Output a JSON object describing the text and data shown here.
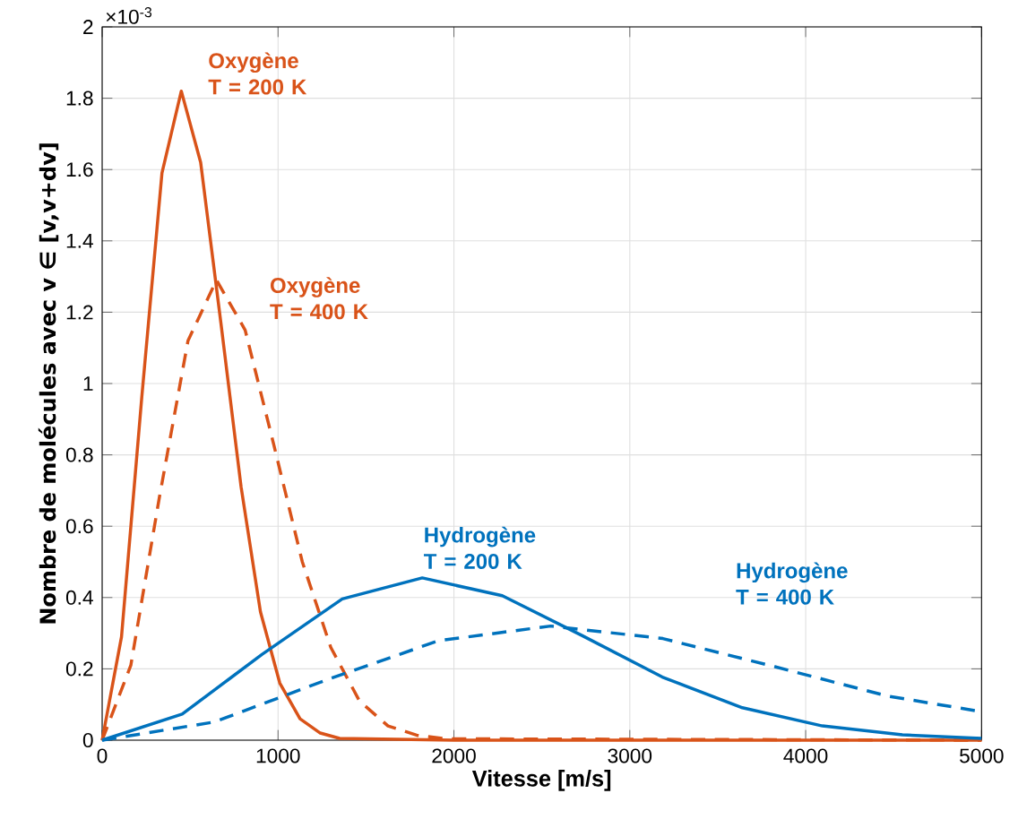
{
  "chart_data": {
    "type": "line",
    "xlabel": "Vitesse [m/s]",
    "ylabel": "Nombre de molécules avec v ∈ [v,v+dv]",
    "annotations": [
      "×10$^{-3}$"
    ],
    "xlim": [
      0,
      5000
    ],
    "xticks": [
      0,
      1000,
      2000,
      3000,
      4000,
      5000
    ],
    "ylim": [
      0,
      2
    ],
    "yticks": [
      0,
      0.2,
      0.4,
      0.6,
      0.8,
      1,
      1.2,
      1.4,
      1.6,
      1.8,
      2
    ],
    "grid": true,
    "marker": "none",
    "series": [
      {
        "name": "Oxygène T = 200 K",
        "color": "#d95319",
        "line_style": "solid",
        "x": [
          0,
          110,
          225,
          340,
          450,
          560,
          675,
          790,
          900,
          1010,
          1125,
          1240,
          1350,
          2000,
          5000
        ],
        "values": [
          0,
          0.29,
          0.96,
          1.59,
          1.82,
          1.62,
          1.17,
          0.71,
          0.36,
          0.16,
          0.06,
          0.02,
          0.005,
          0,
          0
        ]
      },
      {
        "name": "Oxygène T = 400 K",
        "color": "#d95319",
        "line_style": "dashed",
        "x": [
          0,
          163,
          325,
          488,
          650,
          813,
          975,
          1138,
          1300,
          1463,
          1625,
          1788,
          1950,
          5000
        ],
        "values": [
          0,
          0.21,
          0.68,
          1.12,
          1.29,
          1.15,
          0.83,
          0.5,
          0.26,
          0.11,
          0.04,
          0.014,
          0.004,
          0
        ]
      },
      {
        "name": "Hydrogène T = 200 K",
        "color": "#0072bd",
        "line_style": "solid",
        "x": [
          0,
          455,
          910,
          1365,
          1820,
          2275,
          2730,
          3185,
          3640,
          4095,
          4550,
          5000
        ],
        "values": [
          0,
          0.073,
          0.241,
          0.396,
          0.455,
          0.405,
          0.293,
          0.177,
          0.091,
          0.04,
          0.015,
          0.005
        ]
      },
      {
        "name": "Hydrogène T = 400 K",
        "color": "#0072bd",
        "line_style": "dashed",
        "x": [
          0,
          638,
          1275,
          1913,
          2550,
          3188,
          3825,
          4463,
          5000
        ],
        "values": [
          0,
          0.051,
          0.169,
          0.279,
          0.32,
          0.285,
          0.206,
          0.124,
          0.08
        ]
      }
    ]
  }
}
